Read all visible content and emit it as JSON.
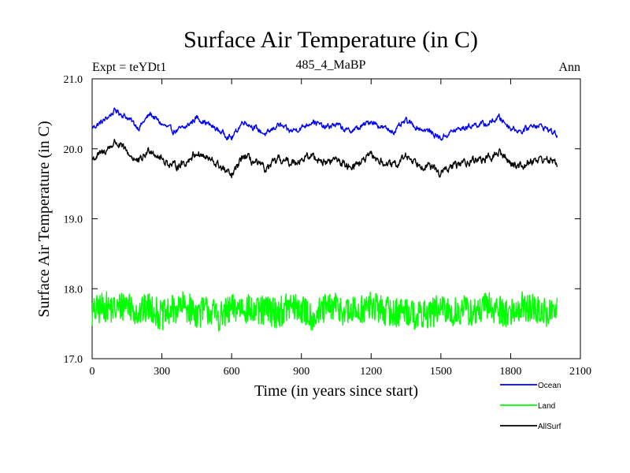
{
  "chart_data": {
    "type": "line",
    "title": "Surface Air Temperature (in C)",
    "subtitle_left": "Expt = teYDt1",
    "subtitle_center": "485_4_MaBP",
    "subtitle_right": "Ann",
    "xlabel": "Time (in years since start)",
    "ylabel": "Surface Air Temperature (in C)",
    "xlim": [
      0,
      2100
    ],
    "ylim": [
      17.0,
      21.0
    ],
    "xticks": [
      0,
      300,
      600,
      900,
      1200,
      1500,
      1800,
      2100
    ],
    "xtick_labels": [
      "0",
      "300",
      "600",
      "900",
      "1200",
      "1500",
      "1800",
      "2100"
    ],
    "yticks": [
      17.0,
      18.0,
      19.0,
      20.0,
      21.0
    ],
    "ytick_labels": [
      "17.0",
      "18.0",
      "19.0",
      "20.0",
      "21.0"
    ],
    "legend_position": "bottom-right, outside plot",
    "series": [
      {
        "name": "Ocean",
        "color": "#0000ff",
        "x": [
          0,
          50,
          100,
          150,
          200,
          250,
          300,
          350,
          400,
          450,
          500,
          550,
          600,
          650,
          700,
          750,
          800,
          850,
          900,
          950,
          1000,
          1050,
          1100,
          1150,
          1200,
          1250,
          1300,
          1350,
          1400,
          1450,
          1500,
          1550,
          1600,
          1650,
          1700,
          1750,
          1800,
          1850,
          1900,
          1950,
          2000
        ],
        "values": [
          20.3,
          20.4,
          20.55,
          20.45,
          20.3,
          20.5,
          20.35,
          20.25,
          20.3,
          20.45,
          20.35,
          20.25,
          20.15,
          20.4,
          20.3,
          20.2,
          20.35,
          20.25,
          20.3,
          20.4,
          20.3,
          20.35,
          20.25,
          20.3,
          20.4,
          20.3,
          20.25,
          20.4,
          20.3,
          20.25,
          20.15,
          20.25,
          20.3,
          20.35,
          20.35,
          20.45,
          20.3,
          20.25,
          20.35,
          20.3,
          20.2
        ]
      },
      {
        "name": "Land",
        "color": "#00ff00",
        "x": [
          0,
          50,
          100,
          150,
          200,
          250,
          300,
          350,
          400,
          450,
          500,
          550,
          600,
          650,
          700,
          750,
          800,
          850,
          900,
          950,
          1000,
          1050,
          1100,
          1150,
          1200,
          1250,
          1300,
          1350,
          1400,
          1450,
          1500,
          1550,
          1600,
          1650,
          1700,
          1750,
          1800,
          1850,
          1900,
          1950,
          2000
        ],
        "values": [
          17.65,
          17.75,
          17.7,
          17.8,
          17.65,
          17.75,
          17.6,
          17.7,
          17.75,
          17.65,
          17.7,
          17.6,
          17.7,
          17.75,
          17.65,
          17.7,
          17.65,
          17.75,
          17.7,
          17.6,
          17.7,
          17.75,
          17.65,
          17.7,
          17.75,
          17.7,
          17.65,
          17.7,
          17.6,
          17.65,
          17.7,
          17.65,
          17.7,
          17.65,
          17.75,
          17.7,
          17.65,
          17.75,
          17.7,
          17.65,
          17.7
        ]
      },
      {
        "name": "AllSurf",
        "color": "#000000",
        "x": [
          0,
          50,
          100,
          150,
          200,
          250,
          300,
          350,
          400,
          450,
          500,
          550,
          600,
          650,
          700,
          750,
          800,
          850,
          900,
          950,
          1000,
          1050,
          1100,
          1150,
          1200,
          1250,
          1300,
          1350,
          1400,
          1450,
          1500,
          1550,
          1600,
          1650,
          1700,
          1750,
          1800,
          1850,
          1900,
          1950,
          2000
        ],
        "values": [
          19.85,
          19.95,
          20.1,
          19.95,
          19.8,
          20.0,
          19.85,
          19.75,
          19.8,
          19.95,
          19.85,
          19.75,
          19.6,
          19.9,
          19.8,
          19.7,
          19.85,
          19.8,
          19.85,
          19.9,
          19.8,
          19.85,
          19.75,
          19.8,
          19.9,
          19.8,
          19.75,
          19.9,
          19.8,
          19.75,
          19.65,
          19.75,
          19.8,
          19.85,
          19.85,
          19.95,
          19.8,
          19.75,
          19.85,
          19.85,
          19.8
        ]
      }
    ]
  }
}
